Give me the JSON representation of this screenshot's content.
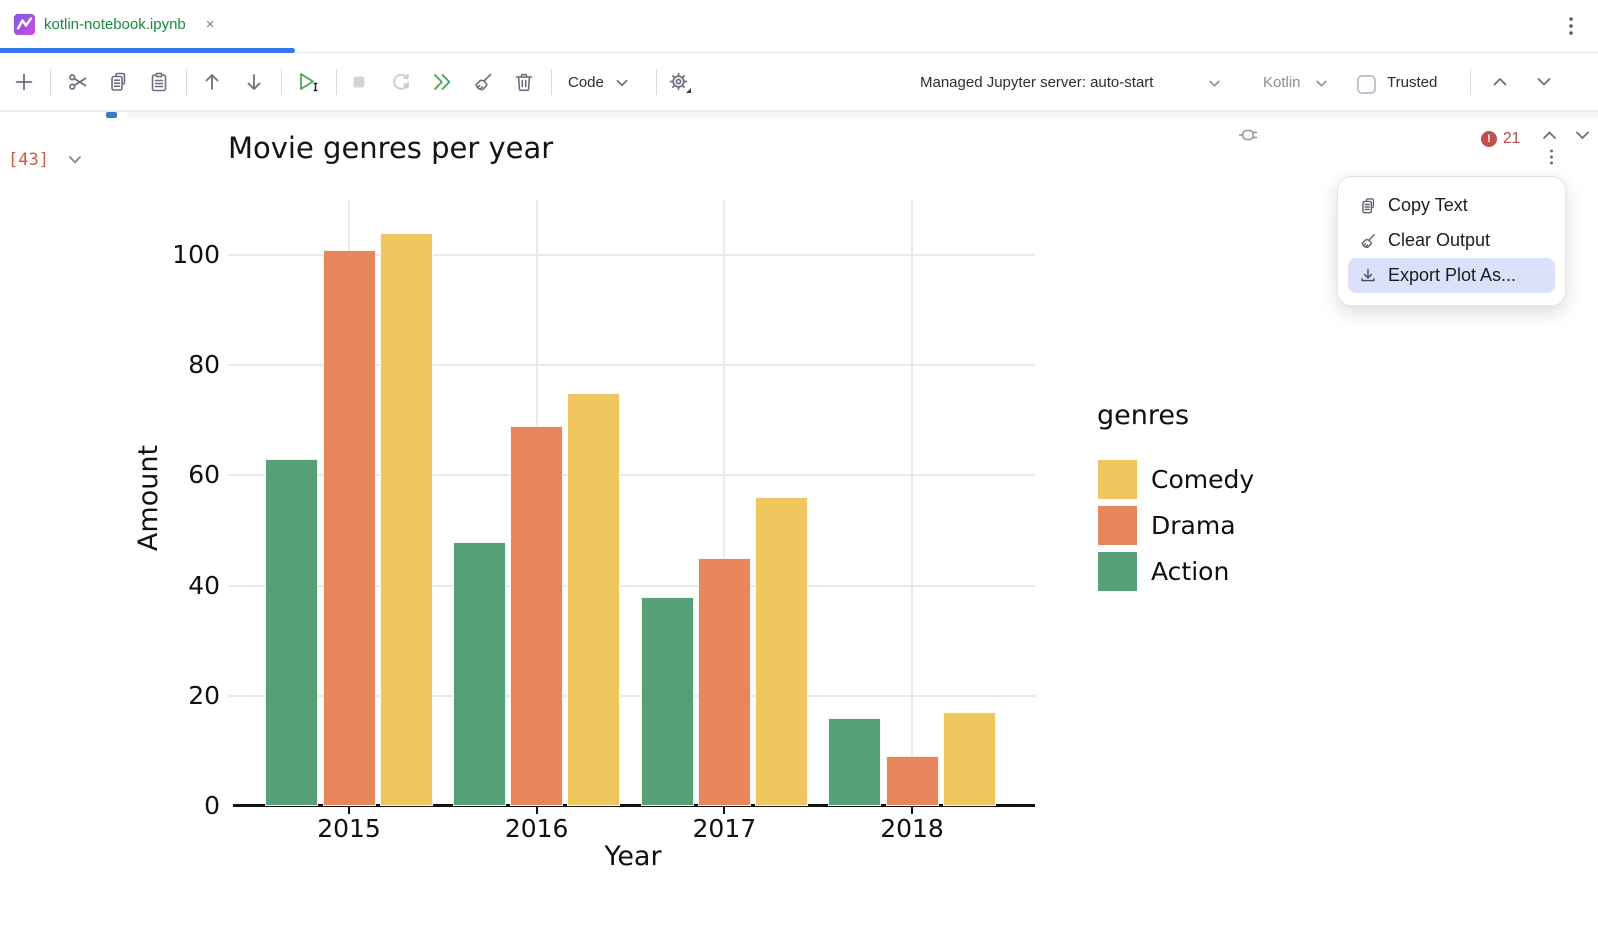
{
  "tab": {
    "title": "kotlin-notebook.ipynb",
    "close_glyph": "×"
  },
  "toolbar": {
    "code_label": "Code",
    "server_label": "Managed Jupyter server: auto-start",
    "kernel_label": "Kotlin",
    "trusted_label": "Trusted"
  },
  "cell": {
    "execution_count": "[43]",
    "error_count": "21"
  },
  "menu": {
    "items": [
      {
        "label": "Copy Text"
      },
      {
        "label": "Clear Output"
      },
      {
        "label": "Export Plot As..."
      }
    ],
    "highlighted_index": 2
  },
  "chart_data": {
    "type": "bar",
    "title": "Movie genres per year",
    "xlabel": "Year",
    "ylabel": "Amount",
    "legend_title": "genres",
    "legend_position": "right",
    "grid": true,
    "categories": [
      "2015",
      "2016",
      "2017",
      "2018"
    ],
    "series": [
      {
        "name": "Action",
        "color": "#57a077",
        "values": [
          63,
          48,
          38,
          16
        ]
      },
      {
        "name": "Drama",
        "color": "#e8875c",
        "values": [
          101,
          69,
          45,
          9
        ]
      },
      {
        "name": "Comedy",
        "color": "#f0c75e",
        "values": [
          104,
          75,
          56,
          17
        ]
      }
    ],
    "legend_order": [
      "Comedy",
      "Drama",
      "Action"
    ],
    "ylim": [
      0,
      110
    ],
    "yticks": [
      0,
      20,
      40,
      60,
      80,
      100
    ]
  }
}
